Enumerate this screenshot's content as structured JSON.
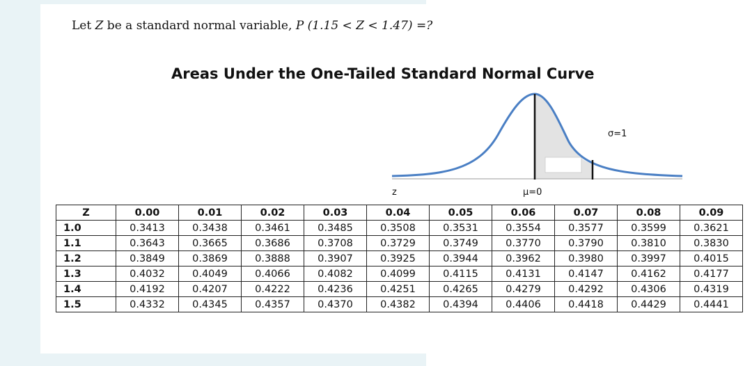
{
  "question": {
    "prefix": "Let ",
    "var1": "Z",
    "middle": " be a standard normal variable, ",
    "expr": "P (1.15  < Z < 1.47) =?"
  },
  "chart": {
    "title": "Areas Under the One-Tailed Standard Normal Curve",
    "sigma_label": "σ=1",
    "mu_label": "μ=0",
    "z_label": "z"
  },
  "table": {
    "headers": [
      "Z",
      "0.00",
      "0.01",
      "0.02",
      "0.03",
      "0.04",
      "0.05",
      "0.06",
      "0.07",
      "0.08",
      "0.09"
    ],
    "rows": [
      [
        "1.0",
        "0.3413",
        "0.3438",
        "0.3461",
        "0.3485",
        "0.3508",
        "0.3531",
        "0.3554",
        "0.3577",
        "0.3599",
        "0.3621"
      ],
      [
        "1.1",
        "0.3643",
        "0.3665",
        "0.3686",
        "0.3708",
        "0.3729",
        "0.3749",
        "0.3770",
        "0.3790",
        "0.3810",
        "0.3830"
      ],
      [
        "1.2",
        "0.3849",
        "0.3869",
        "0.3888",
        "0.3907",
        "0.3925",
        "0.3944",
        "0.3962",
        "0.3980",
        "0.3997",
        "0.4015"
      ],
      [
        "1.3",
        "0.4032",
        "0.4049",
        "0.4066",
        "0.4082",
        "0.4099",
        "0.4115",
        "0.4131",
        "0.4147",
        "0.4162",
        "0.4177"
      ],
      [
        "1.4",
        "0.4192",
        "0.4207",
        "0.4222",
        "0.4236",
        "0.4251",
        "0.4265",
        "0.4279",
        "0.4292",
        "0.4306",
        "0.4319"
      ],
      [
        "1.5",
        "0.4332",
        "0.4345",
        "0.4357",
        "0.4370",
        "0.4382",
        "0.4394",
        "0.4406",
        "0.4418",
        "0.4429",
        "0.4441"
      ]
    ]
  },
  "colors": {
    "curve": "#4a7fc4",
    "shade": "#e3e3e3",
    "background_tint": "#e9f3f6"
  }
}
